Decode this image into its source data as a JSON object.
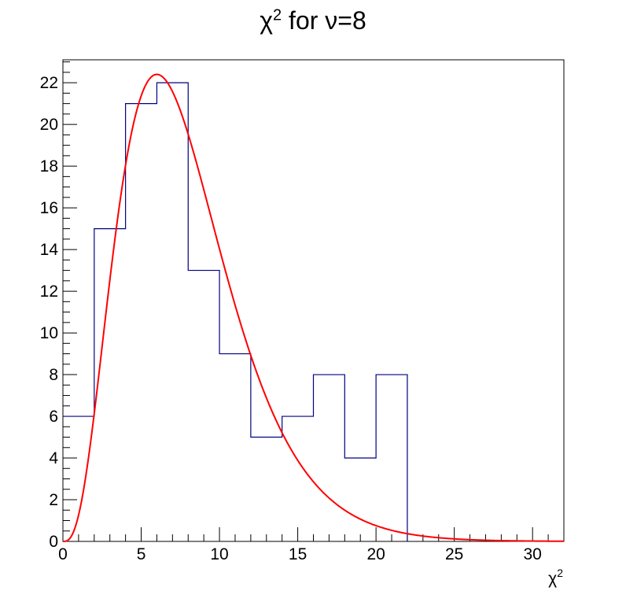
{
  "chart_data": {
    "type": "bar",
    "title_base": "χ",
    "title_sup": "2",
    "title_rest": " for ν=8",
    "xlabel_base": "χ",
    "xlabel_sup": "2",
    "xlim": [
      0,
      32
    ],
    "ylim": [
      0,
      23.1
    ],
    "x_ticks": [
      0,
      5,
      10,
      15,
      20,
      25,
      30
    ],
    "y_ticks": [
      0,
      2,
      4,
      6,
      8,
      10,
      12,
      14,
      16,
      18,
      20,
      22
    ],
    "bins": {
      "edges": [
        0,
        2,
        4,
        6,
        8,
        10,
        12,
        14,
        16,
        18,
        20,
        22,
        24,
        26,
        28,
        30,
        32
      ],
      "counts": [
        6,
        15,
        21,
        22,
        13,
        9,
        5,
        6,
        8,
        4,
        8,
        0,
        0,
        0,
        0,
        0
      ]
    },
    "series": [
      {
        "type": "histogram",
        "color": "#000080"
      },
      {
        "type": "line",
        "function": "chi-square pdf, 8 degrees of freedom, scaled",
        "dof": 8,
        "peak": 22.4,
        "peak_x": 6,
        "color": "#ff0000"
      }
    ],
    "grid": false
  }
}
